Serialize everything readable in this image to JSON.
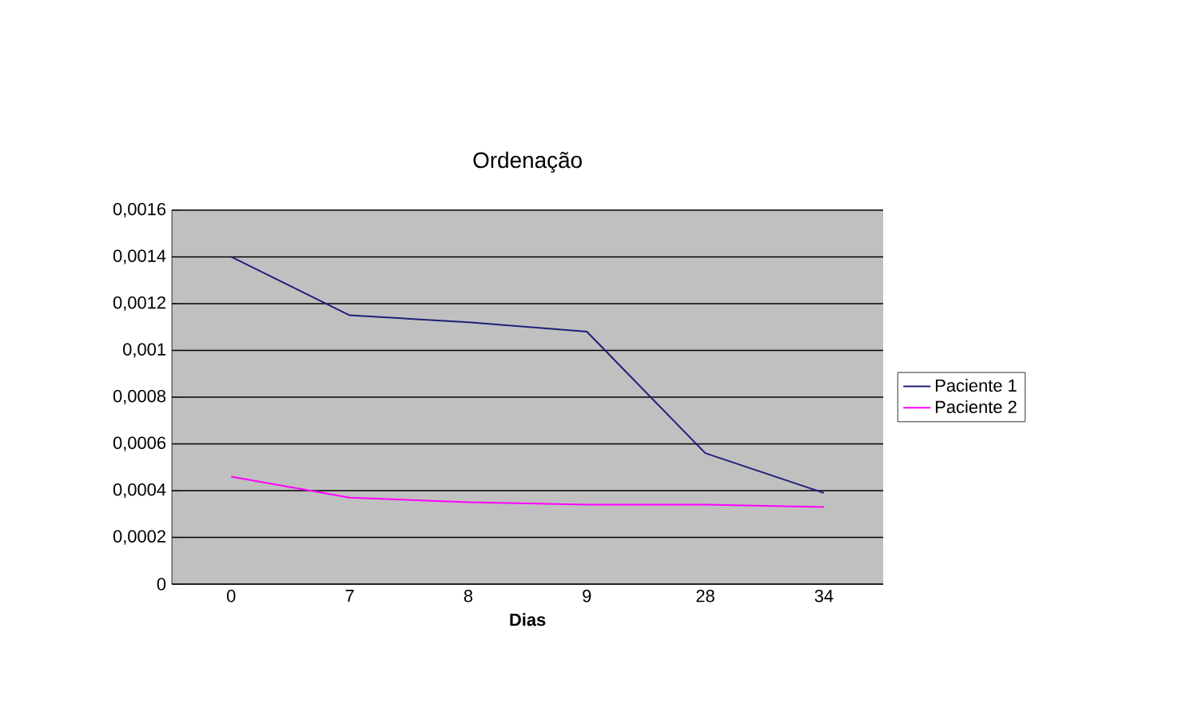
{
  "chart_data": {
    "type": "line",
    "title": "Ordenação",
    "xlabel": "Dias",
    "categories": [
      "0",
      "7",
      "8",
      "9",
      "28",
      "34"
    ],
    "series": [
      {
        "name": "Paciente 1",
        "color": "#1f1f7a",
        "values": [
          0.0014,
          0.00115,
          0.00112,
          0.00108,
          0.00056,
          0.00039
        ]
      },
      {
        "name": "Paciente 2",
        "color": "#ff00ff",
        "values": [
          0.00046,
          0.00037,
          0.00035,
          0.00034,
          0.00034,
          0.00033
        ]
      }
    ],
    "ylim": [
      0,
      0.0016
    ],
    "yticks": [
      0,
      {
        "value": 0.0002,
        "label": "0,0002"
      },
      {
        "value": 0.0004,
        "label": "0,0004"
      },
      {
        "value": 0.0006,
        "label": "0,0006"
      },
      {
        "value": 0.0008,
        "label": "0,0008"
      },
      {
        "value": 0.001,
        "label": "0,001"
      },
      {
        "value": 0.0012,
        "label": "0,0012"
      },
      {
        "value": 0.0014,
        "label": "0,0014"
      },
      {
        "value": 0.0016,
        "label": "0,0016"
      }
    ],
    "grid": "y",
    "legend": "right",
    "marker": "none",
    "line_style": "solid"
  }
}
